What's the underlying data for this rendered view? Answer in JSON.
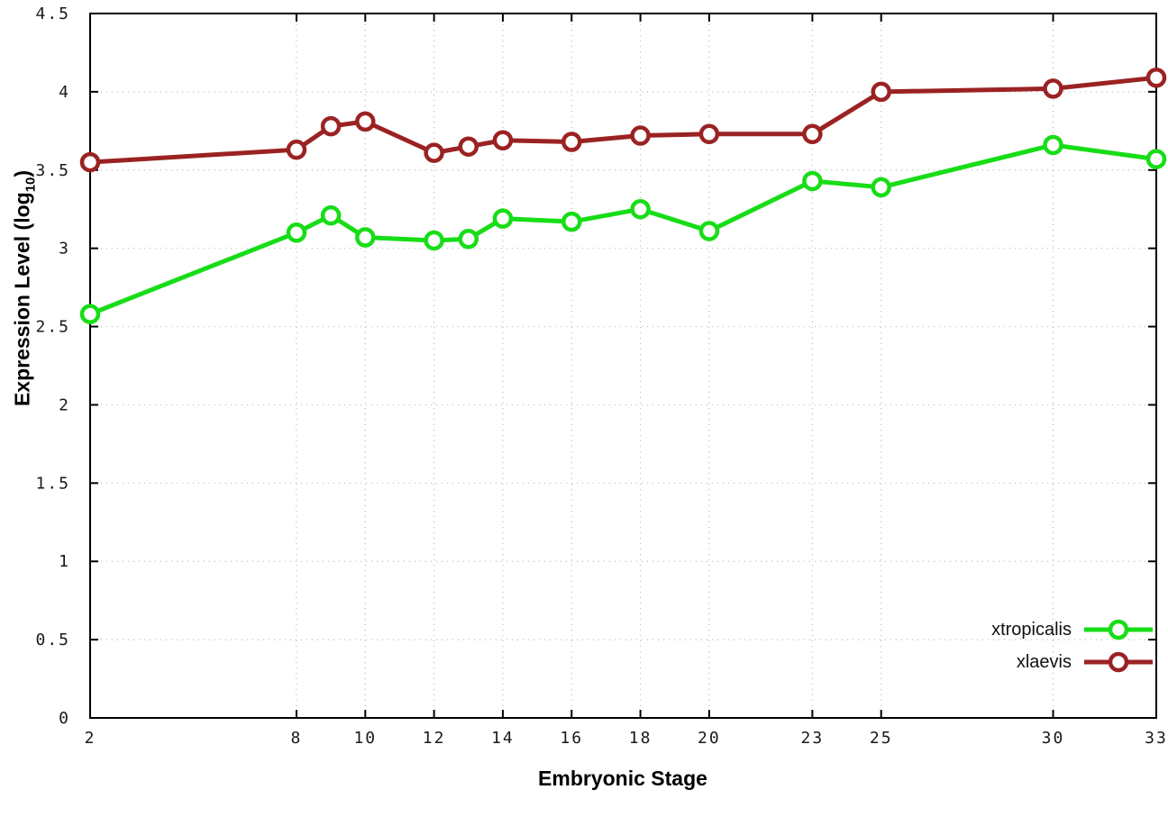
{
  "chart_data": {
    "type": "line",
    "title": "",
    "xlabel": "Embryonic Stage",
    "ylabel": "Expression Level (log10)",
    "ylabel_parts": {
      "main": "Expression Level (log",
      "sub": "10",
      "end": ")"
    },
    "xlim": [
      2,
      33
    ],
    "ylim": [
      0,
      4.5
    ],
    "xticks": [
      2,
      8,
      10,
      12,
      14,
      16,
      18,
      20,
      23,
      25,
      30,
      33
    ],
    "yticks": [
      0,
      0.5,
      1,
      1.5,
      2,
      2.5,
      3,
      3.5,
      4,
      4.5
    ],
    "ytick_labels": [
      "0",
      "0.5",
      "1",
      "1.5",
      "2",
      "2.5",
      "3",
      "3.5",
      "4",
      "4.5"
    ],
    "grid": true,
    "legend_position": "bottom-right",
    "background_color": "#ffffff",
    "grid_color": "#b8b8b8",
    "border_color": "#000000",
    "x": [
      2,
      8,
      9,
      10,
      12,
      13,
      14,
      16,
      18,
      20,
      23,
      25,
      30,
      33
    ],
    "series": [
      {
        "name": "xtropicalis",
        "color": "#17dd17",
        "values": [
          2.58,
          3.1,
          3.21,
          3.07,
          3.05,
          3.06,
          3.19,
          3.17,
          3.25,
          3.11,
          3.43,
          3.39,
          3.66,
          3.57
        ]
      },
      {
        "name": "xlaevis",
        "color": "#9b2222",
        "values": [
          3.55,
          3.63,
          3.78,
          3.81,
          3.61,
          3.65,
          3.69,
          3.68,
          3.72,
          3.73,
          3.73,
          4.0,
          4.02,
          4.09
        ]
      }
    ]
  }
}
